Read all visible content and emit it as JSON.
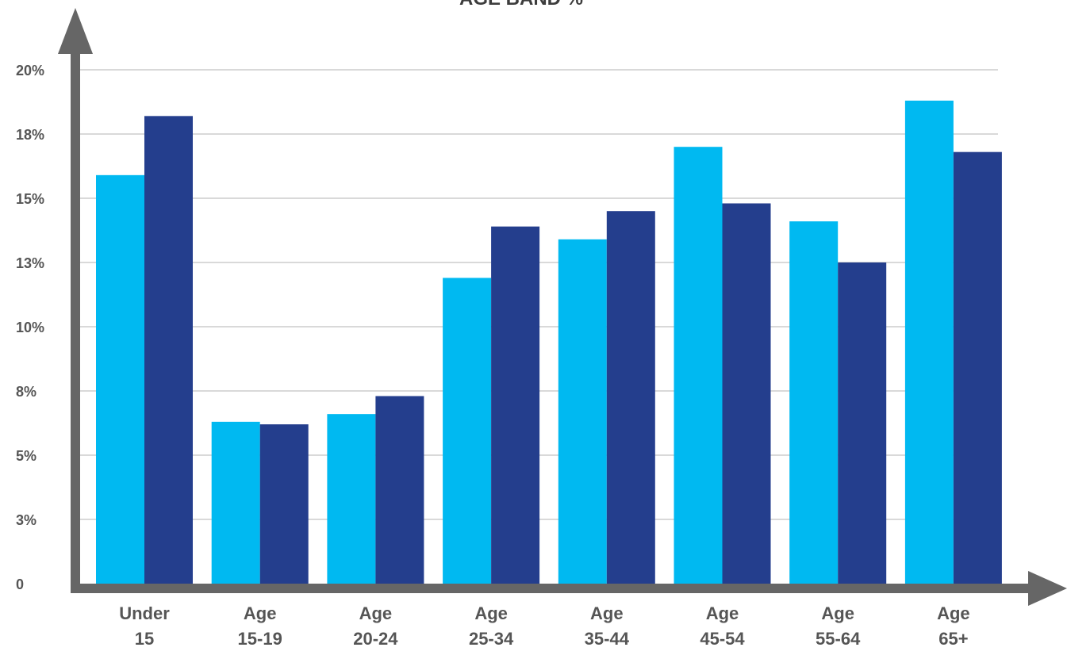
{
  "chart_data": {
    "type": "bar",
    "title": "AGE BAND %",
    "xlabel": "",
    "ylabel": "",
    "ylim": [
      0,
      20
    ],
    "grid": true,
    "legend": "none",
    "y_tick_values": [
      0,
      2.5,
      5,
      7.5,
      10,
      12.5,
      15,
      17.5,
      20
    ],
    "y_tick_labels": [
      "0",
      "3%",
      "5%",
      "8%",
      "10%",
      "13%",
      "15%",
      "18%",
      "20%"
    ],
    "categories": [
      [
        "Under",
        "15"
      ],
      [
        "Age",
        "15-19"
      ],
      [
        "Age",
        "20-24"
      ],
      [
        "Age",
        "25-34"
      ],
      [
        "Age",
        "35-44"
      ],
      [
        "Age",
        "45-54"
      ],
      [
        "Age",
        "55-64"
      ],
      [
        "Age",
        "65+"
      ]
    ],
    "series": [
      {
        "color": "#00b9f1",
        "values": [
          15.9,
          6.3,
          6.6,
          11.9,
          13.4,
          17.0,
          14.1,
          18.8
        ]
      },
      {
        "color": "#243e8d",
        "values": [
          18.2,
          6.2,
          7.3,
          13.9,
          14.5,
          14.8,
          12.5,
          16.8
        ]
      }
    ],
    "colors": {
      "axis": "#666666",
      "grid": "#d9d9d9",
      "text": "#555555"
    }
  }
}
